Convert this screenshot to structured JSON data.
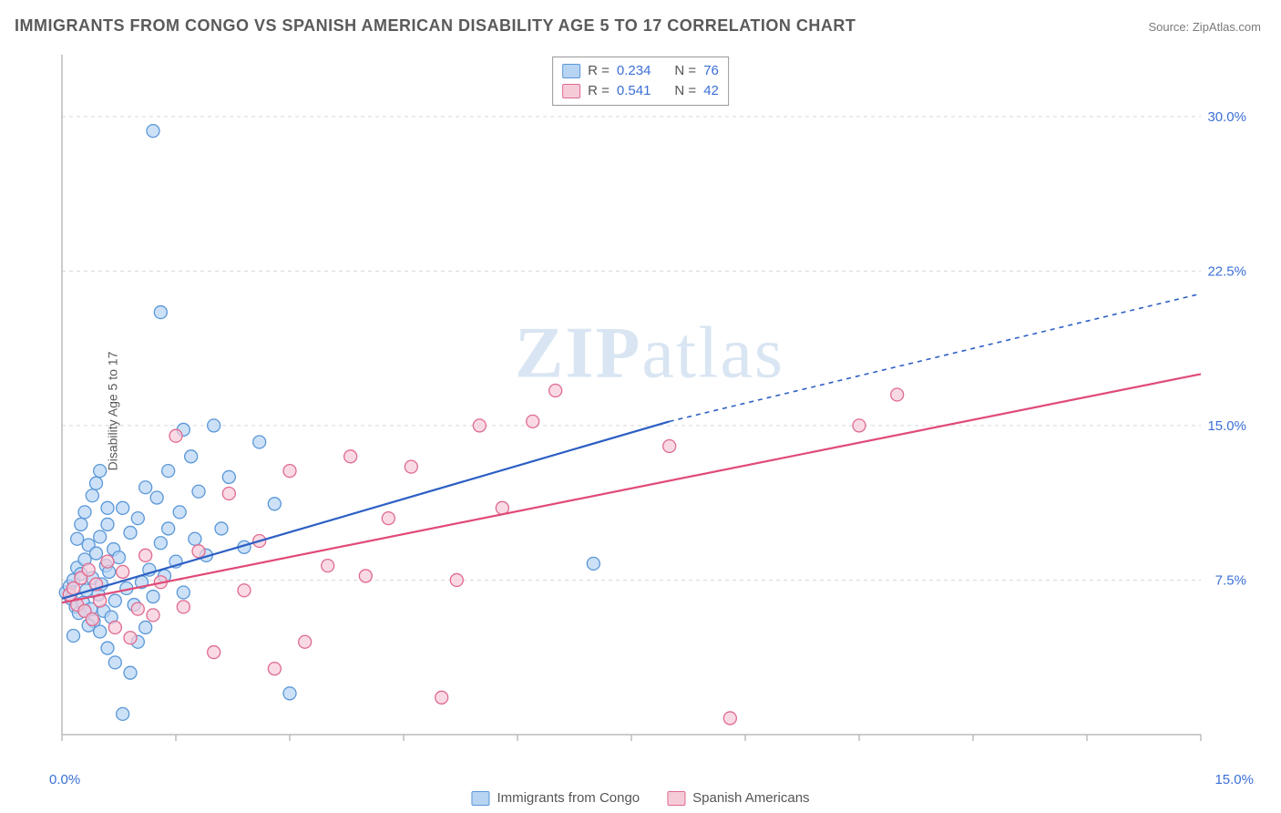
{
  "title": "IMMIGRANTS FROM CONGO VS SPANISH AMERICAN DISABILITY AGE 5 TO 17 CORRELATION CHART",
  "source_label": "Source: ",
  "source_name": "ZipAtlas.com",
  "ylabel": "Disability Age 5 to 17",
  "watermark": "ZIPatlas",
  "chart": {
    "type": "scatter-with-regression",
    "xlim": [
      0,
      15
    ],
    "ylim": [
      0,
      33
    ],
    "xaxis_label_start": "0.0%",
    "xaxis_label_end": "15.0%",
    "xtick_positions": [
      0,
      1.5,
      3,
      4.5,
      6,
      7.5,
      9,
      10.5,
      12,
      13.5,
      15
    ],
    "ytick_positions": [
      7.5,
      15.0,
      22.5,
      30.0
    ],
    "ytick_labels": [
      "7.5%",
      "15.0%",
      "22.5%",
      "30.0%"
    ],
    "grid_color": "#d8d8d8",
    "grid_dash": "4 4",
    "axis_color": "#bcbcbc",
    "tick_font_color": "#3b6fd6",
    "tick_font_size": 15,
    "label_font_size": 14,
    "title_font_size": 18,
    "background_color": "#ffffff",
    "marker_radius": 7,
    "marker_stroke_width": 1.3,
    "line_width": 2.2,
    "series": [
      {
        "name": "Immigrants from Congo",
        "marker_fill": "#b7d4f3",
        "marker_stroke": "#5a97d8",
        "line_color": "#2d5fc4",
        "line_dash_extend": "5 5",
        "R": "0.234",
        "N": "76",
        "regression": {
          "x1": 0,
          "y1": 6.6,
          "x2": 8.0,
          "y2": 15.2,
          "x2_ext": 15,
          "y2_ext": 21.4
        },
        "points": [
          [
            0.05,
            6.9
          ],
          [
            0.1,
            7.2
          ],
          [
            0.12,
            6.6
          ],
          [
            0.15,
            7.5
          ],
          [
            0.18,
            6.2
          ],
          [
            0.2,
            8.1
          ],
          [
            0.22,
            5.9
          ],
          [
            0.25,
            7.8
          ],
          [
            0.28,
            6.4
          ],
          [
            0.3,
            8.5
          ],
          [
            0.32,
            7.0
          ],
          [
            0.35,
            9.2
          ],
          [
            0.38,
            6.1
          ],
          [
            0.4,
            7.6
          ],
          [
            0.42,
            5.5
          ],
          [
            0.45,
            8.8
          ],
          [
            0.48,
            6.8
          ],
          [
            0.5,
            9.6
          ],
          [
            0.52,
            7.3
          ],
          [
            0.55,
            6.0
          ],
          [
            0.58,
            8.2
          ],
          [
            0.6,
            10.2
          ],
          [
            0.62,
            7.9
          ],
          [
            0.65,
            5.7
          ],
          [
            0.68,
            9.0
          ],
          [
            0.7,
            6.5
          ],
          [
            0.75,
            8.6
          ],
          [
            0.8,
            11.0
          ],
          [
            0.85,
            7.1
          ],
          [
            0.9,
            9.8
          ],
          [
            0.95,
            6.3
          ],
          [
            1.0,
            10.5
          ],
          [
            1.05,
            7.4
          ],
          [
            1.1,
            12.0
          ],
          [
            1.15,
            8.0
          ],
          [
            1.2,
            6.7
          ],
          [
            1.25,
            11.5
          ],
          [
            1.3,
            9.3
          ],
          [
            1.35,
            7.7
          ],
          [
            1.4,
            12.8
          ],
          [
            1.5,
            8.4
          ],
          [
            1.55,
            10.8
          ],
          [
            1.6,
            6.9
          ],
          [
            1.7,
            13.5
          ],
          [
            1.75,
            9.5
          ],
          [
            1.8,
            11.8
          ],
          [
            1.9,
            8.7
          ],
          [
            2.0,
            15.0
          ],
          [
            2.1,
            10.0
          ],
          [
            2.2,
            12.5
          ],
          [
            2.4,
            9.1
          ],
          [
            2.6,
            14.2
          ],
          [
            2.8,
            11.2
          ],
          [
            3.0,
            2.0
          ],
          [
            1.2,
            29.3
          ],
          [
            1.3,
            20.5
          ],
          [
            0.5,
            5.0
          ],
          [
            0.6,
            4.2
          ],
          [
            0.7,
            3.5
          ],
          [
            0.8,
            1.0
          ],
          [
            0.9,
            3.0
          ],
          [
            1.0,
            4.5
          ],
          [
            1.1,
            5.2
          ],
          [
            1.4,
            10.0
          ],
          [
            1.6,
            14.8
          ],
          [
            0.3,
            10.8
          ],
          [
            0.4,
            11.6
          ],
          [
            0.45,
            12.2
          ],
          [
            0.5,
            12.8
          ],
          [
            0.6,
            11.0
          ],
          [
            0.3,
            6.0
          ],
          [
            0.35,
            5.3
          ],
          [
            7.0,
            8.3
          ],
          [
            0.15,
            4.8
          ],
          [
            0.2,
            9.5
          ],
          [
            0.25,
            10.2
          ]
        ]
      },
      {
        "name": "Spanish Americans",
        "marker_fill": "#f6cbd8",
        "marker_stroke": "#e06a8f",
        "line_color": "#e04a78",
        "R": "0.541",
        "N": "42",
        "regression": {
          "x1": 0,
          "y1": 6.4,
          "x2": 15,
          "y2": 17.5
        },
        "points": [
          [
            0.1,
            6.8
          ],
          [
            0.15,
            7.1
          ],
          [
            0.2,
            6.3
          ],
          [
            0.25,
            7.6
          ],
          [
            0.3,
            6.0
          ],
          [
            0.35,
            8.0
          ],
          [
            0.4,
            5.6
          ],
          [
            0.45,
            7.3
          ],
          [
            0.5,
            6.5
          ],
          [
            0.6,
            8.4
          ],
          [
            0.7,
            5.2
          ],
          [
            0.8,
            7.9
          ],
          [
            0.9,
            4.7
          ],
          [
            1.0,
            6.1
          ],
          [
            1.1,
            8.7
          ],
          [
            1.2,
            5.8
          ],
          [
            1.3,
            7.4
          ],
          [
            1.5,
            14.5
          ],
          [
            1.6,
            6.2
          ],
          [
            1.8,
            8.9
          ],
          [
            2.0,
            4.0
          ],
          [
            2.2,
            11.7
          ],
          [
            2.4,
            7.0
          ],
          [
            2.6,
            9.4
          ],
          [
            2.8,
            3.2
          ],
          [
            3.0,
            12.8
          ],
          [
            3.2,
            4.5
          ],
          [
            3.5,
            8.2
          ],
          [
            3.8,
            13.5
          ],
          [
            4.0,
            7.7
          ],
          [
            4.3,
            10.5
          ],
          [
            4.6,
            13.0
          ],
          [
            5.0,
            1.8
          ],
          [
            5.2,
            7.5
          ],
          [
            5.5,
            15.0
          ],
          [
            5.8,
            11.0
          ],
          [
            6.2,
            15.2
          ],
          [
            6.5,
            16.7
          ],
          [
            8.0,
            14.0
          ],
          [
            8.8,
            0.8
          ],
          [
            10.5,
            15.0
          ],
          [
            11.0,
            16.5
          ]
        ]
      }
    ]
  },
  "legend_top": {
    "r_label": "R =",
    "n_label": "N ="
  },
  "legend_bottom": {
    "items": [
      {
        "label": "Immigrants from Congo",
        "fill": "#b7d4f3",
        "stroke": "#5a97d8"
      },
      {
        "label": "Spanish Americans",
        "fill": "#f6cbd8",
        "stroke": "#e06a8f"
      }
    ]
  }
}
